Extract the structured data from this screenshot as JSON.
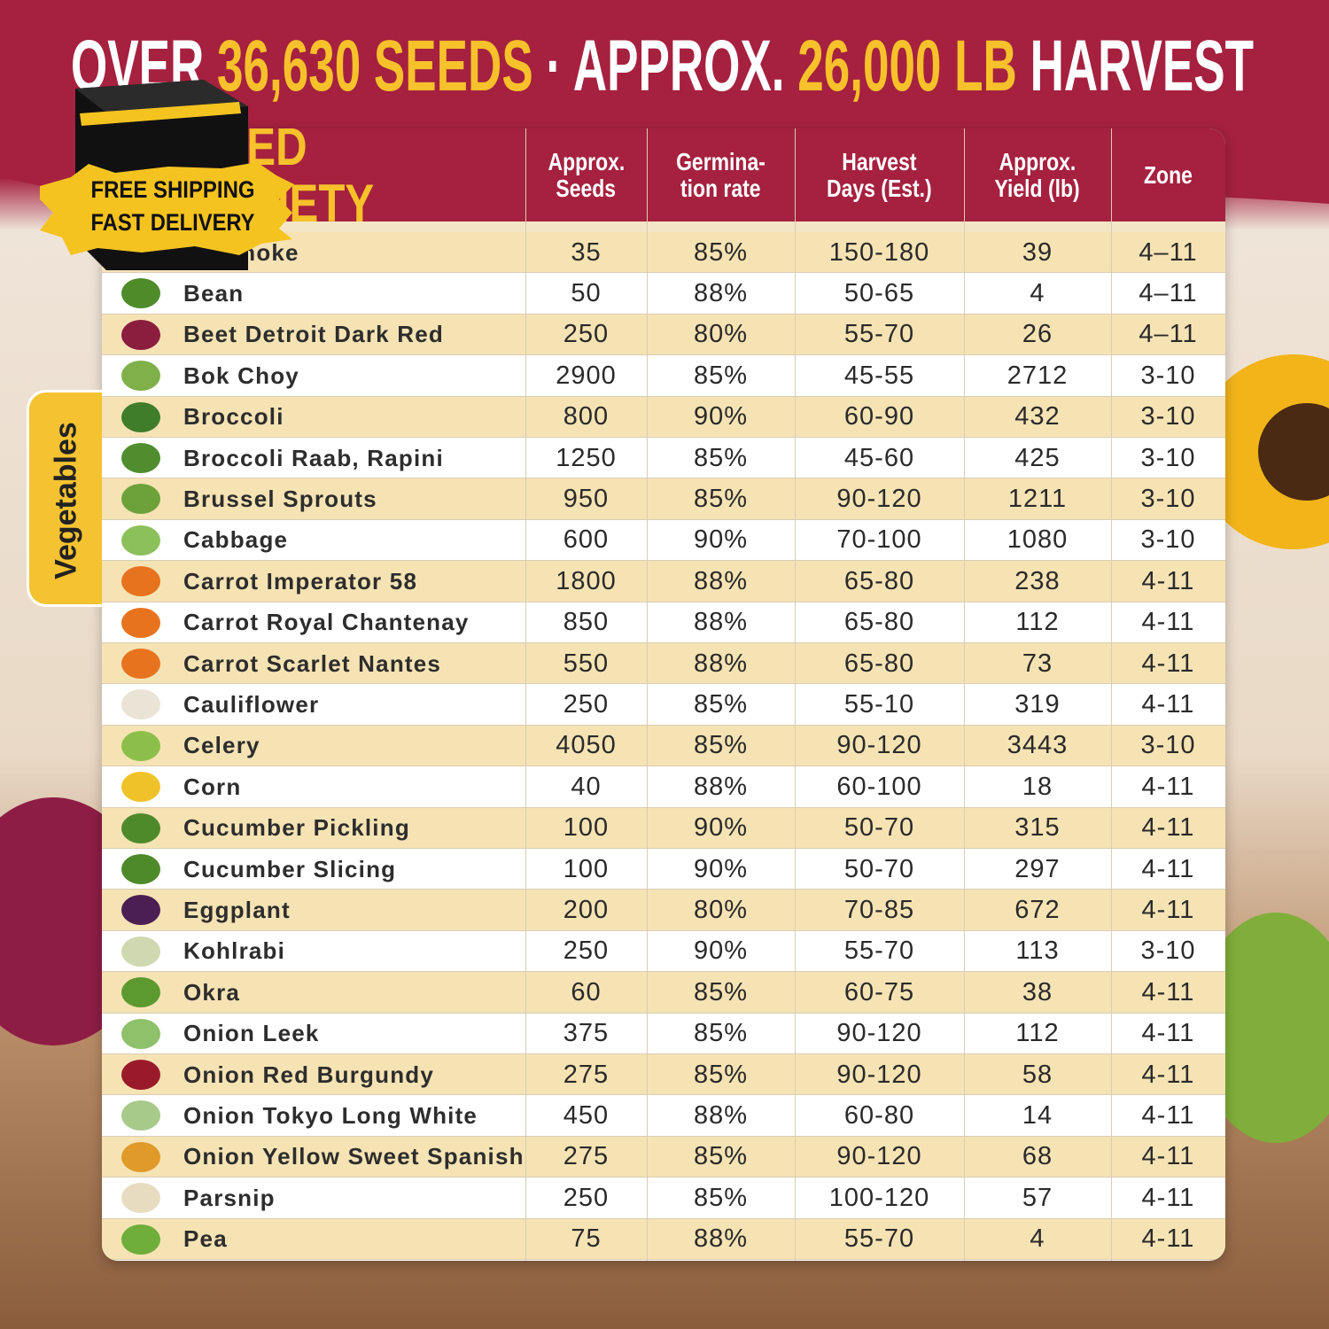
{
  "header": {
    "title_parts": [
      "OVER ",
      "36,630 SEEDS",
      " · APPROX. ",
      "26,000 LB",
      " HARVEST"
    ]
  },
  "badge": {
    "line1": "FREE SHIPPING",
    "line2": "FAST DELIVERY"
  },
  "side_tab": "Vegetables",
  "table": {
    "columns": [
      [
        "SEED VARIETY"
      ],
      [
        "Approx.",
        "Seeds"
      ],
      [
        "Germina-",
        "tion rate"
      ],
      [
        "Harvest",
        "Days (Est.)"
      ],
      [
        "Approx.",
        "Yield (lb)"
      ],
      [
        "Zone"
      ]
    ],
    "rows": [
      [
        "Artichoke",
        "35",
        "85%",
        "150-180",
        "39",
        "4–11"
      ],
      [
        "Bean",
        "50",
        "88%",
        "50-65",
        "4",
        "4–11"
      ],
      [
        "Beet Detroit Dark Red",
        "250",
        "80%",
        "55-70",
        "26",
        "4–11"
      ],
      [
        "Bok Choy",
        "2900",
        "85%",
        "45-55",
        "2712",
        "3-10"
      ],
      [
        "Broccoli",
        "800",
        "90%",
        "60-90",
        "432",
        "3-10"
      ],
      [
        "Broccoli Raab, Rapini",
        "1250",
        "85%",
        "45-60",
        "425",
        "3-10"
      ],
      [
        "Brussel Sprouts",
        "950",
        "85%",
        "90-120",
        "1211",
        "3-10"
      ],
      [
        "Cabbage",
        "600",
        "90%",
        "70-100",
        "1080",
        "3-10"
      ],
      [
        "Carrot Imperator 58",
        "1800",
        "88%",
        "65-80",
        "238",
        "4-11"
      ],
      [
        "Carrot Royal Chantenay",
        "850",
        "88%",
        "65-80",
        "112",
        "4-11"
      ],
      [
        "Carrot Scarlet Nantes",
        "550",
        "88%",
        "65-80",
        "73",
        "4-11"
      ],
      [
        "Cauliflower",
        "250",
        "85%",
        "55-10",
        "319",
        "4-11"
      ],
      [
        "Celery",
        "4050",
        "85%",
        "90-120",
        "3443",
        "3-10"
      ],
      [
        "Corn",
        "40",
        "88%",
        "60-100",
        "18",
        "4-11"
      ],
      [
        "Cucumber Pickling",
        "100",
        "90%",
        "50-70",
        "315",
        "4-11"
      ],
      [
        "Cucumber Slicing",
        "100",
        "90%",
        "50-70",
        "297",
        "4-11"
      ],
      [
        "Eggplant",
        "200",
        "80%",
        "70-85",
        "672",
        "4-11"
      ],
      [
        "Kohlrabi",
        "250",
        "90%",
        "55-70",
        "113",
        "3-10"
      ],
      [
        "Okra",
        "60",
        "85%",
        "60-75",
        "38",
        "4-11"
      ],
      [
        "Onion Leek",
        "375",
        "85%",
        "90-120",
        "112",
        "4-11"
      ],
      [
        "Onion Red Burgundy",
        "275",
        "85%",
        "90-120",
        "58",
        "4-11"
      ],
      [
        "Onion Tokyo Long White",
        "450",
        "88%",
        "60-80",
        "14",
        "4-11"
      ],
      [
        "Onion Yellow Sweet Spanish",
        "275",
        "85%",
        "90-120",
        "68",
        "4-11"
      ],
      [
        "Parsnip",
        "250",
        "85%",
        "100-120",
        "57",
        "4-11"
      ],
      [
        "Pea",
        "75",
        "88%",
        "55-70",
        "4",
        "4-11"
      ]
    ]
  }
}
